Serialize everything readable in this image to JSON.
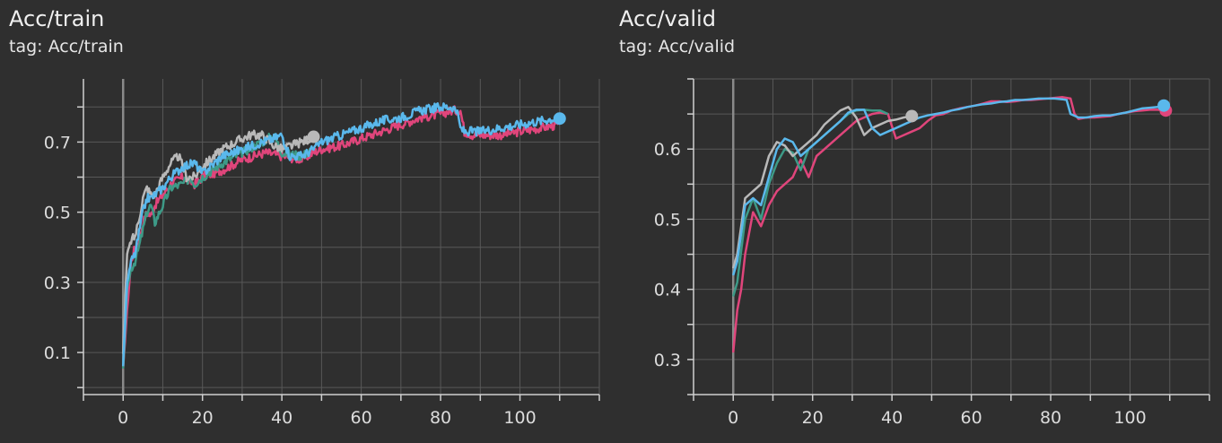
{
  "charts": [
    {
      "title": "Acc/train",
      "tag": "tag: Acc/train",
      "chart_data": {
        "type": "line",
        "title": "Acc/train",
        "xlabel": "",
        "ylabel": "",
        "xlim": [
          -10,
          120
        ],
        "ylim": [
          -0.02,
          0.88
        ],
        "x_ticks": [
          0,
          20,
          40,
          60,
          80,
          100
        ],
        "y_ticks": [
          0.1,
          0.3,
          0.5,
          0.7
        ],
        "grid": true,
        "noisy": true,
        "series": [
          {
            "color": "#e0457b",
            "x": [
              0,
              1,
              2,
              3,
              4,
              5,
              6,
              7,
              8,
              10,
              12,
              15,
              18,
              20,
              25,
              30,
              33,
              36,
              40,
              45,
              48,
              50,
              55,
              60,
              65,
              70,
              75,
              80,
              83,
              85,
              86,
              88,
              90,
              95,
              100,
              105,
              110
            ],
            "y": [
              0.05,
              0.22,
              0.36,
              0.4,
              0.42,
              0.47,
              0.5,
              0.49,
              0.52,
              0.55,
              0.58,
              0.6,
              0.58,
              0.6,
              0.62,
              0.65,
              0.66,
              0.67,
              0.66,
              0.65,
              0.67,
              0.68,
              0.69,
              0.71,
              0.73,
              0.75,
              0.77,
              0.78,
              0.79,
              0.79,
              0.73,
              0.72,
              0.72,
              0.72,
              0.73,
              0.74,
              0.75
            ]
          },
          {
            "color": "#3d9a87",
            "x": [
              0,
              1,
              2,
              3,
              4,
              5,
              6,
              7,
              8,
              10,
              12,
              15,
              17,
              18,
              20,
              25,
              30,
              35,
              38,
              40,
              45,
              48
            ],
            "y": [
              0.05,
              0.28,
              0.34,
              0.36,
              0.4,
              0.45,
              0.5,
              0.52,
              0.47,
              0.52,
              0.57,
              0.58,
              0.6,
              0.58,
              0.6,
              0.64,
              0.67,
              0.7,
              0.72,
              0.67,
              0.66,
              0.68
            ]
          },
          {
            "color": "#b9b9b9",
            "x": [
              0,
              1,
              2,
              3,
              4,
              5,
              6,
              7,
              8,
              10,
              12,
              14,
              15,
              16,
              17,
              18,
              20,
              25,
              30,
              32,
              35,
              38,
              40,
              45,
              48
            ],
            "y": [
              0.1,
              0.38,
              0.42,
              0.43,
              0.48,
              0.54,
              0.57,
              0.55,
              0.55,
              0.6,
              0.64,
              0.66,
              0.63,
              0.6,
              0.6,
              0.6,
              0.63,
              0.68,
              0.71,
              0.72,
              0.72,
              0.69,
              0.68,
              0.7,
              0.715
            ]
          },
          {
            "color": "#5ab8ec",
            "x": [
              0,
              1,
              2,
              3,
              4,
              5,
              6,
              7,
              8,
              10,
              12,
              15,
              18,
              20,
              25,
              30,
              35,
              38,
              40,
              42,
              45,
              48,
              50,
              55,
              60,
              65,
              70,
              75,
              80,
              83,
              84,
              85,
              86,
              88,
              90,
              95,
              100,
              105,
              110
            ],
            "y": [
              0.06,
              0.3,
              0.36,
              0.38,
              0.44,
              0.5,
              0.54,
              0.54,
              0.55,
              0.57,
              0.6,
              0.63,
              0.64,
              0.61,
              0.66,
              0.68,
              0.7,
              0.71,
              0.72,
              0.66,
              0.66,
              0.68,
              0.7,
              0.72,
              0.74,
              0.76,
              0.77,
              0.79,
              0.8,
              0.8,
              0.79,
              0.74,
              0.73,
              0.73,
              0.73,
              0.74,
              0.75,
              0.76,
              0.77
            ]
          }
        ],
        "end_dots": [
          {
            "color": "#b9b9b9",
            "x": 48,
            "y": 0.715
          },
          {
            "color": "#5ab8ec",
            "x": 110,
            "y": 0.767
          }
        ]
      }
    },
    {
      "title": "Acc/valid",
      "tag": "tag: Acc/valid",
      "chart_data": {
        "type": "line",
        "title": "Acc/valid",
        "xlabel": "",
        "ylabel": "",
        "xlim": [
          -10,
          120
        ],
        "ylim": [
          0.25,
          0.7
        ],
        "x_ticks": [
          0,
          20,
          40,
          60,
          80,
          100
        ],
        "y_ticks": [
          0.3,
          0.4,
          0.5,
          0.6
        ],
        "grid": true,
        "noisy": false,
        "series": [
          {
            "color": "#e0457b",
            "x": [
              0,
              1,
              2,
              3,
              5,
              7,
              9,
              11,
              13,
              15,
              17,
              19,
              21,
              23,
              25,
              27,
              29,
              31,
              33,
              35,
              37,
              39,
              41,
              43,
              45,
              47,
              49,
              51,
              53,
              55,
              57,
              59,
              61,
              63,
              65,
              67,
              69,
              71,
              73,
              75,
              77,
              79,
              81,
              83,
              85,
              86,
              87,
              89,
              91,
              93,
              95,
              97,
              99,
              101,
              103,
              105,
              107,
              109
            ],
            "y": [
              0.31,
              0.37,
              0.4,
              0.45,
              0.51,
              0.49,
              0.52,
              0.54,
              0.55,
              0.56,
              0.585,
              0.56,
              0.59,
              0.6,
              0.61,
              0.62,
              0.63,
              0.64,
              0.645,
              0.65,
              0.652,
              0.65,
              0.615,
              0.62,
              0.625,
              0.63,
              0.64,
              0.648,
              0.65,
              0.655,
              0.658,
              0.66,
              0.662,
              0.665,
              0.668,
              0.668,
              0.667,
              0.668,
              0.67,
              0.67,
              0.671,
              0.672,
              0.673,
              0.674,
              0.672,
              0.65,
              0.643,
              0.645,
              0.645,
              0.646,
              0.647,
              0.65,
              0.652,
              0.654,
              0.655,
              0.656,
              0.656,
              0.655
            ]
          },
          {
            "color": "#3d9a87",
            "x": [
              0,
              1,
              3,
              5,
              7,
              9,
              11,
              13,
              15,
              17,
              19,
              21,
              23,
              25,
              27,
              29,
              31,
              33,
              35,
              37,
              39
            ],
            "y": [
              0.39,
              0.41,
              0.5,
              0.53,
              0.5,
              0.55,
              0.58,
              0.6,
              0.595,
              0.57,
              0.6,
              0.61,
              0.62,
              0.63,
              0.64,
              0.65,
              0.655,
              0.656,
              0.655,
              0.655,
              0.65
            ]
          },
          {
            "color": "#b9b9b9",
            "x": [
              0,
              1,
              3,
              5,
              7,
              9,
              11,
              13,
              15,
              17,
              19,
              21,
              23,
              25,
              27,
              29,
              31,
              33,
              35,
              37,
              39,
              41,
              43,
              45
            ],
            "y": [
              0.43,
              0.45,
              0.53,
              0.54,
              0.55,
              0.59,
              0.61,
              0.605,
              0.59,
              0.6,
              0.61,
              0.62,
              0.635,
              0.645,
              0.655,
              0.66,
              0.645,
              0.62,
              0.63,
              0.635,
              0.64,
              0.642,
              0.645,
              0.647
            ]
          },
          {
            "color": "#5ab8ec",
            "x": [
              0,
              1,
              3,
              5,
              7,
              9,
              11,
              13,
              15,
              17,
              19,
              21,
              23,
              25,
              27,
              29,
              31,
              33,
              35,
              37,
              39,
              41,
              43,
              45,
              47,
              49,
              51,
              53,
              55,
              57,
              59,
              61,
              63,
              65,
              67,
              69,
              71,
              73,
              75,
              77,
              79,
              81,
              83,
              84,
              85,
              87,
              89,
              91,
              93,
              95,
              97,
              99,
              101,
              103,
              105,
              107,
              109
            ],
            "y": [
              0.42,
              0.44,
              0.52,
              0.53,
              0.52,
              0.56,
              0.6,
              0.615,
              0.61,
              0.59,
              0.6,
              0.61,
              0.62,
              0.63,
              0.64,
              0.652,
              0.656,
              0.656,
              0.63,
              0.62,
              0.625,
              0.63,
              0.635,
              0.64,
              0.645,
              0.648,
              0.65,
              0.652,
              0.655,
              0.657,
              0.66,
              0.662,
              0.664,
              0.665,
              0.667,
              0.668,
              0.67,
              0.67,
              0.671,
              0.672,
              0.672,
              0.672,
              0.671,
              0.67,
              0.65,
              0.645,
              0.645,
              0.647,
              0.648,
              0.648,
              0.65,
              0.652,
              0.655,
              0.658,
              0.659,
              0.66,
              0.661
            ]
          }
        ],
        "end_dots": [
          {
            "color": "#b9b9b9",
            "x": 45,
            "y": 0.647
          },
          {
            "color": "#e0457b",
            "x": 109,
            "y": 0.655
          },
          {
            "color": "#5ab8ec",
            "x": 108.5,
            "y": 0.662
          }
        ]
      }
    }
  ]
}
